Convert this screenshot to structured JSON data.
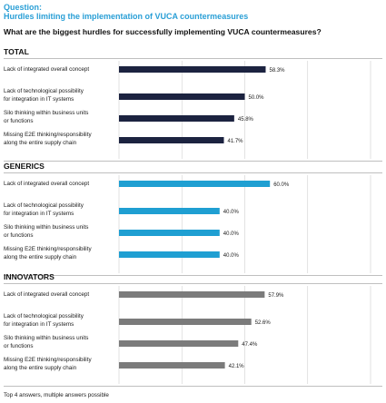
{
  "header": {
    "label": "Question:",
    "subtitle": "Hurdles limiting the implementation of VUCA countermeasures",
    "question": "What are the biggest hurdles for successfully implementing VUCA countermeasures?"
  },
  "footnote": "Top 4 answers, multiple answers possible",
  "chart_data": [
    {
      "type": "bar",
      "title": "TOTAL",
      "orientation": "horizontal",
      "categories": [
        "Lack of integrated overall concept",
        "Lack of technological possibility for integration in IT systems",
        "Silo thinking within business units or functions",
        "Missing E2E thinking/responsibility along the entire supply chain"
      ],
      "category_lines": [
        [
          "Lack of integrated overall concept"
        ],
        [
          "Lack of technological possibility",
          "for integration in IT systems"
        ],
        [
          "Silo thinking within business units",
          "or functions"
        ],
        [
          "Missing E2E thinking/responsibility",
          "along the entire supply chain"
        ]
      ],
      "values": [
        58.3,
        50.0,
        45.8,
        41.7
      ],
      "value_labels": [
        "58.3%",
        "50.0%",
        "45.8%",
        "41.7%"
      ],
      "xlim": [
        0,
        100
      ],
      "axis_labels": [
        "0 %",
        "100 %"
      ],
      "color": "#1c2340",
      "grid": true
    },
    {
      "type": "bar",
      "title": "GENERICS",
      "orientation": "horizontal",
      "categories": [
        "Lack of integrated overall concept",
        "Lack of technological possibility for integration in IT systems",
        "Silo thinking within business units or functions",
        "Missing E2E thinking/responsibility along the entire supply chain"
      ],
      "category_lines": [
        [
          "Lack of integrated overall concept"
        ],
        [
          "Lack of technological possibility",
          "for integration in IT systems"
        ],
        [
          "Silo thinking within business units",
          "or functions"
        ],
        [
          "Missing E2E thinking/responsibility",
          "along the entire supply chain"
        ]
      ],
      "values": [
        60.0,
        40.0,
        40.0,
        40.0
      ],
      "value_labels": [
        "60.0%",
        "40.0%",
        "40.0%",
        "40.0%"
      ],
      "xlim": [
        0,
        100
      ],
      "axis_labels": [
        "0 %",
        "100 %"
      ],
      "color": "#1f9fd2",
      "grid": true
    },
    {
      "type": "bar",
      "title": "INNOVATORS",
      "orientation": "horizontal",
      "categories": [
        "Lack of integrated overall concept",
        "Lack of technological possibility for integration in IT systems",
        "Silo thinking within business units or functions",
        "Missing E2E thinking/responsibility along the entire supply chain"
      ],
      "category_lines": [
        [
          "Lack of integrated overall concept"
        ],
        [
          "Lack of technological possibility",
          "for integration in IT systems"
        ],
        [
          "Silo thinking within business units",
          "or functions"
        ],
        [
          "Missing E2E thinking/responsibility",
          "along the entire supply chain"
        ]
      ],
      "values": [
        57.9,
        52.6,
        47.4,
        42.1
      ],
      "value_labels": [
        "57.9%",
        "52.6%",
        "47.4%",
        "42.1%"
      ],
      "xlim": [
        0,
        100
      ],
      "axis_labels": [
        "0 %",
        "100 %"
      ],
      "color": "#7b7b7b",
      "grid": true
    }
  ]
}
